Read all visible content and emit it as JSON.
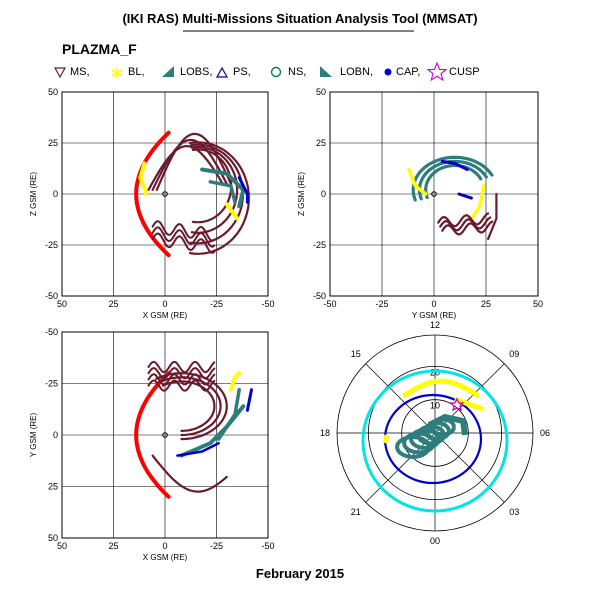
{
  "header": {
    "title": "(IKI RAS) Multi-Missions Situation Analysis Tool (MMSAT)",
    "subtitle": "PLAZMA_F"
  },
  "legend": [
    {
      "label": "MS,",
      "icon": "triangle-down-icon",
      "color": "#6b1a2e"
    },
    {
      "label": "BL,",
      "icon": "star-icon",
      "color": "#ffff00"
    },
    {
      "label": "LOBS,",
      "icon": "wedge-icon",
      "color": "#2e7d7d"
    },
    {
      "label": "PS,",
      "icon": "triangle-up-icon",
      "color": "#0000aa"
    },
    {
      "label": "NS,",
      "icon": "circle-icon",
      "color": "#008844"
    },
    {
      "label": "LOBN,",
      "icon": "wedge-icon",
      "color": "#2e7d7d"
    },
    {
      "label": "CAP,",
      "icon": "dot-icon",
      "color": "#0000cc"
    },
    {
      "label": "CUSP",
      "icon": "star-outline-icon",
      "color": "#cc00cc"
    }
  ],
  "footer": {
    "date": "February 2015"
  },
  "colors": {
    "magnetopause": "#ff0000",
    "magnetosheath": "#6b1a2e",
    "boundary_layer": "#ffff00",
    "lobe": "#2e7d7d",
    "cap": "#0000cc",
    "polar_ring": "#00e5e5",
    "cusp": "#cc00cc"
  },
  "chart_data": [
    {
      "type": "scatter",
      "title": "",
      "xlabel": "X GSM (RE)",
      "ylabel": "Z GSM (RE)",
      "xlim": [
        50,
        -50
      ],
      "ylim": [
        -50,
        50
      ],
      "xticks": [
        "50",
        "25",
        "0",
        "-25",
        "-50"
      ],
      "yticks": [
        "50",
        "25",
        "0",
        "-25",
        "-50"
      ],
      "grid": true
    },
    {
      "type": "scatter",
      "title": "",
      "xlabel": "Y GSM (RE)",
      "ylabel": "Z GSM (RE)",
      "xlim": [
        -50,
        50
      ],
      "ylim": [
        -50,
        50
      ],
      "xticks": [
        "-50",
        "-25",
        "0",
        "25",
        "50"
      ],
      "yticks": [
        "50",
        "25",
        "0",
        "-25",
        "-50"
      ],
      "grid": true
    },
    {
      "type": "scatter",
      "title": "",
      "xlabel": "X GSM (RE)",
      "ylabel": "Y GSM (RE)",
      "xlim": [
        50,
        -50
      ],
      "ylim": [
        -50,
        50
      ],
      "xticks": [
        "50",
        "25",
        "0",
        "-25",
        "-50"
      ],
      "yticks": [
        "-50",
        "-25",
        "0",
        "25",
        "50"
      ],
      "grid": true
    },
    {
      "type": "polar",
      "title": "",
      "hour_labels": [
        "12",
        "09",
        "06",
        "03",
        "00",
        "21",
        "18",
        "15"
      ],
      "latitude_labels": [
        "20",
        "10"
      ],
      "grid": true
    }
  ]
}
